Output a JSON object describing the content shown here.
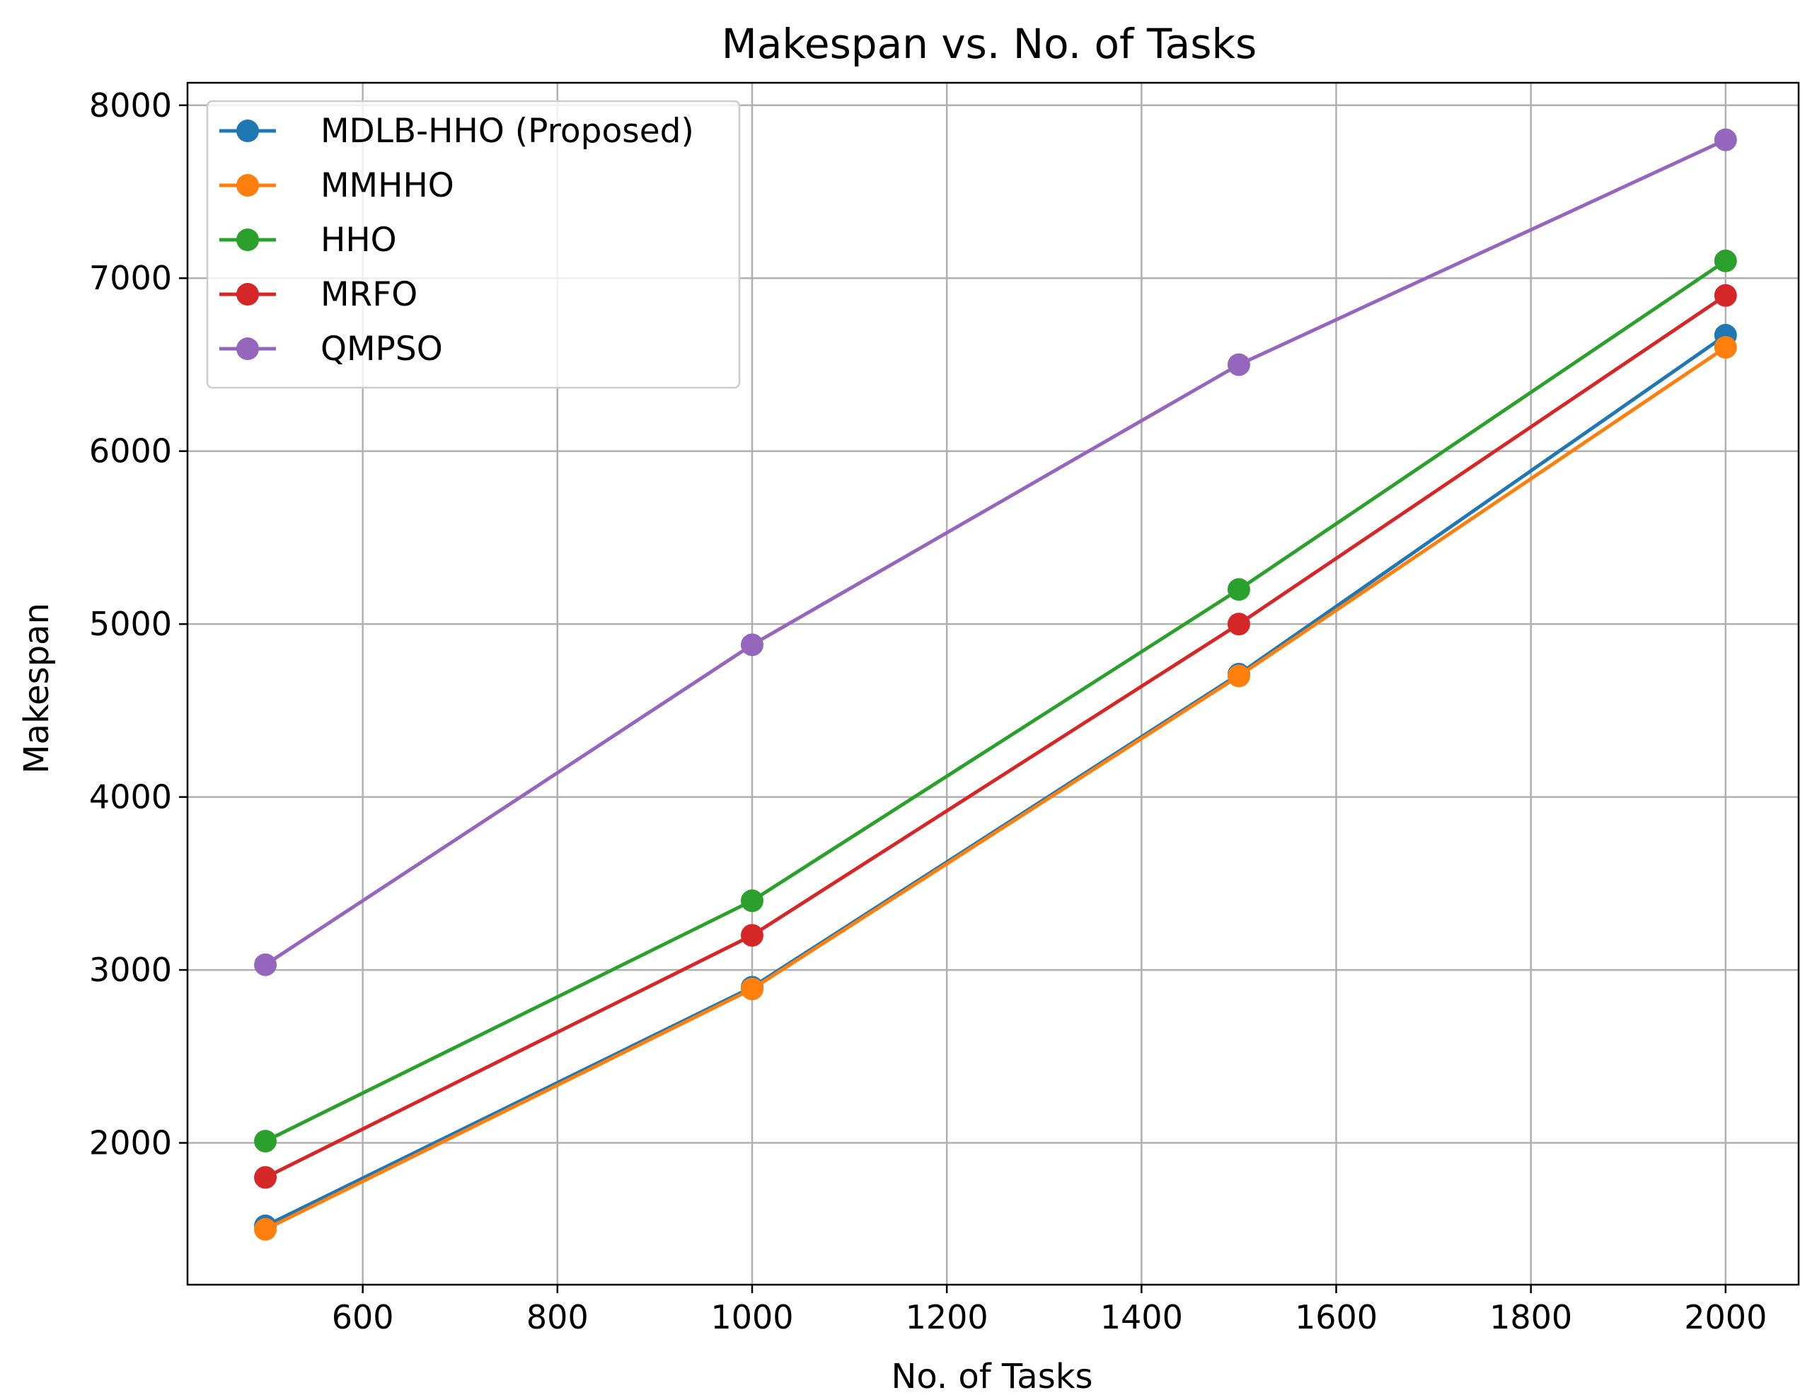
{
  "chart_data": {
    "type": "line",
    "title": "Makespan vs. No. of Tasks",
    "xlabel": "No. of Tasks",
    "ylabel": "Makespan",
    "xlim": [
      420,
      2075
    ],
    "ylim": [
      1180,
      8130
    ],
    "xticks": [
      600,
      800,
      1000,
      1200,
      1400,
      1600,
      1800,
      2000
    ],
    "yticks": [
      2000,
      3000,
      4000,
      5000,
      6000,
      7000,
      8000
    ],
    "grid": true,
    "legend_position": "upper-left",
    "x": [
      500,
      1000,
      1500,
      2000
    ],
    "series": [
      {
        "name": "MDLB-HHO (Proposed)",
        "color": "#1f77b4",
        "values": [
          1520,
          2900,
          4710,
          6670
        ]
      },
      {
        "name": "MMHHO",
        "color": "#ff7f0e",
        "values": [
          1500,
          2890,
          4700,
          6600
        ]
      },
      {
        "name": "HHO",
        "color": "#2ca02c",
        "values": [
          2010,
          3400,
          5200,
          7100
        ]
      },
      {
        "name": "MRFO",
        "color": "#d62728",
        "values": [
          1800,
          3200,
          5000,
          6900
        ]
      },
      {
        "name": "QMPSO",
        "color": "#9467bd",
        "values": [
          3030,
          4880,
          6500,
          7800
        ]
      }
    ]
  }
}
